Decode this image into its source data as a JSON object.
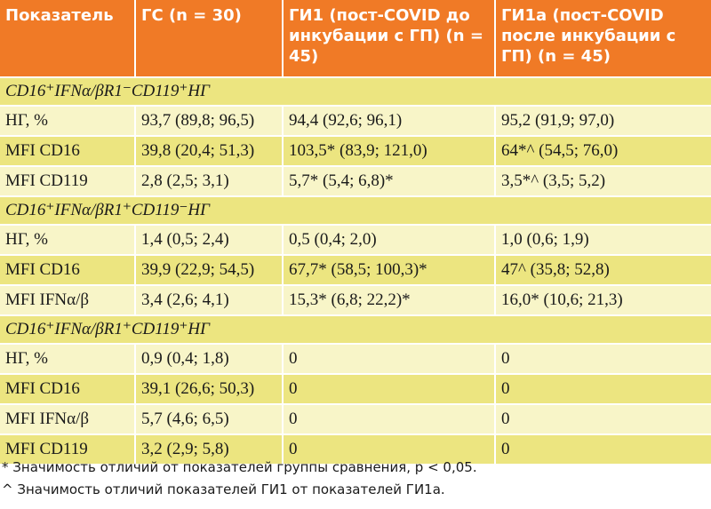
{
  "header": {
    "col1": "Показатель",
    "col2": "ГС (n = 30)",
    "col3": "ГИ1 (пост-COVID до инкубации с ГП) (n = 45)",
    "col4": "ГИ1а (пост-COVID после инкубации с ГП) (n = 45)"
  },
  "sections": [
    {
      "title": "CD16⁺IFNα/βR1⁻CD119⁺НГ",
      "rows": [
        [
          "НГ, %",
          "93,7 (89,8; 96,5)",
          "94,4 (92,6; 96,1)",
          "95,2 (91,9; 97,0)"
        ],
        [
          "MFI CD16",
          "39,8 (20,4; 51,3)",
          "103,5* (83,9; 121,0)",
          "64*^ (54,5; 76,0)"
        ],
        [
          "MFI CD119",
          "2,8 (2,5; 3,1)",
          "5,7* (5,4; 6,8)*",
          "3,5*^ (3,5; 5,2)"
        ]
      ]
    },
    {
      "title": "CD16⁺IFNα/βR1⁺CD119⁻НГ",
      "rows": [
        [
          "НГ, %",
          "1,4 (0,5; 2,4)",
          "0,5 (0,4; 2,0)",
          "1,0 (0,6; 1,9)"
        ],
        [
          "MFI CD16",
          "39,9 (22,9; 54,5)",
          "67,7* (58,5; 100,3)*",
          "47^ (35,8; 52,8)"
        ],
        [
          "MFI IFNα/β",
          "3,4 (2,6; 4,1)",
          "15,3* (6,8; 22,2)*",
          "16,0* (10,6; 21,3)"
        ]
      ]
    },
    {
      "title": "CD16⁺IFNα/βR1⁺CD119⁺НГ",
      "rows": [
        [
          "НГ, %",
          "0,9 (0,4; 1,8)",
          "0",
          "0"
        ],
        [
          "MFI CD16",
          "39,1 (26,6; 50,3)",
          "0",
          "0"
        ],
        [
          "MFI IFNα/β",
          "5,7 (4,6; 6,5)",
          "0",
          "0"
        ],
        [
          "MFI CD119",
          "3,2 (2,9; 5,8)",
          "0",
          "0"
        ]
      ]
    }
  ],
  "footnotes": [
    "* Значимость отличий от показателей группы сравнения, p < 0,05.",
    "^ Значимость отличий показателей ГИ1 от показателей ГИ1а."
  ],
  "colors": {
    "header_bg": "#f07a26",
    "band_dark": "#ece580",
    "band_light": "#f8f5c8"
  }
}
